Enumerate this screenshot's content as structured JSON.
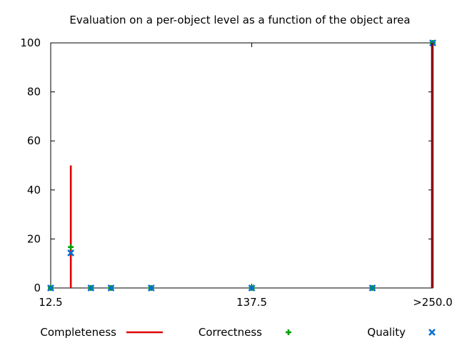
{
  "chart_data": {
    "type": "line",
    "title": "Evaluation on a per-object level as a function of the object area",
    "xlabel": "",
    "ylabel": "",
    "x_ticks": [
      {
        "value": 12.5,
        "label": "12.5"
      },
      {
        "value": 137.5,
        "label": "137.5"
      },
      {
        "value": 250.0,
        "label": ">250.0"
      }
    ],
    "xlim": [
      12.5,
      250.0
    ],
    "y_ticks": [
      0,
      20,
      40,
      60,
      80,
      100
    ],
    "ylim": [
      0,
      100
    ],
    "grid": false,
    "legend_position": "bottom",
    "series": [
      {
        "name": "Completeness",
        "style": "impulses",
        "color": "#e00000",
        "points": [
          {
            "x": 25.0,
            "y": 50
          },
          {
            "x": 250.0,
            "y": 100
          }
        ]
      },
      {
        "name": "Correctness",
        "style": "points",
        "marker": "plus",
        "color": "#00a000",
        "points": [
          {
            "x": 12.5,
            "y": 0
          },
          {
            "x": 25.0,
            "y": 16.7
          },
          {
            "x": 37.5,
            "y": 0
          },
          {
            "x": 50.0,
            "y": 0
          },
          {
            "x": 75.0,
            "y": 0
          },
          {
            "x": 137.5,
            "y": 0
          },
          {
            "x": 212.5,
            "y": 0
          },
          {
            "x": 250.0,
            "y": 100
          }
        ]
      },
      {
        "name": "Quality",
        "style": "points",
        "marker": "cross",
        "color": "#0070d0",
        "points": [
          {
            "x": 12.5,
            "y": 0
          },
          {
            "x": 25.0,
            "y": 14.3
          },
          {
            "x": 37.5,
            "y": 0
          },
          {
            "x": 50.0,
            "y": 0
          },
          {
            "x": 75.0,
            "y": 0
          },
          {
            "x": 137.5,
            "y": 0
          },
          {
            "x": 212.5,
            "y": 0
          },
          {
            "x": 250.0,
            "y": 100
          }
        ]
      }
    ],
    "extra_mark": {
      "x": 250.0,
      "y": 100,
      "color": "#800000"
    }
  }
}
